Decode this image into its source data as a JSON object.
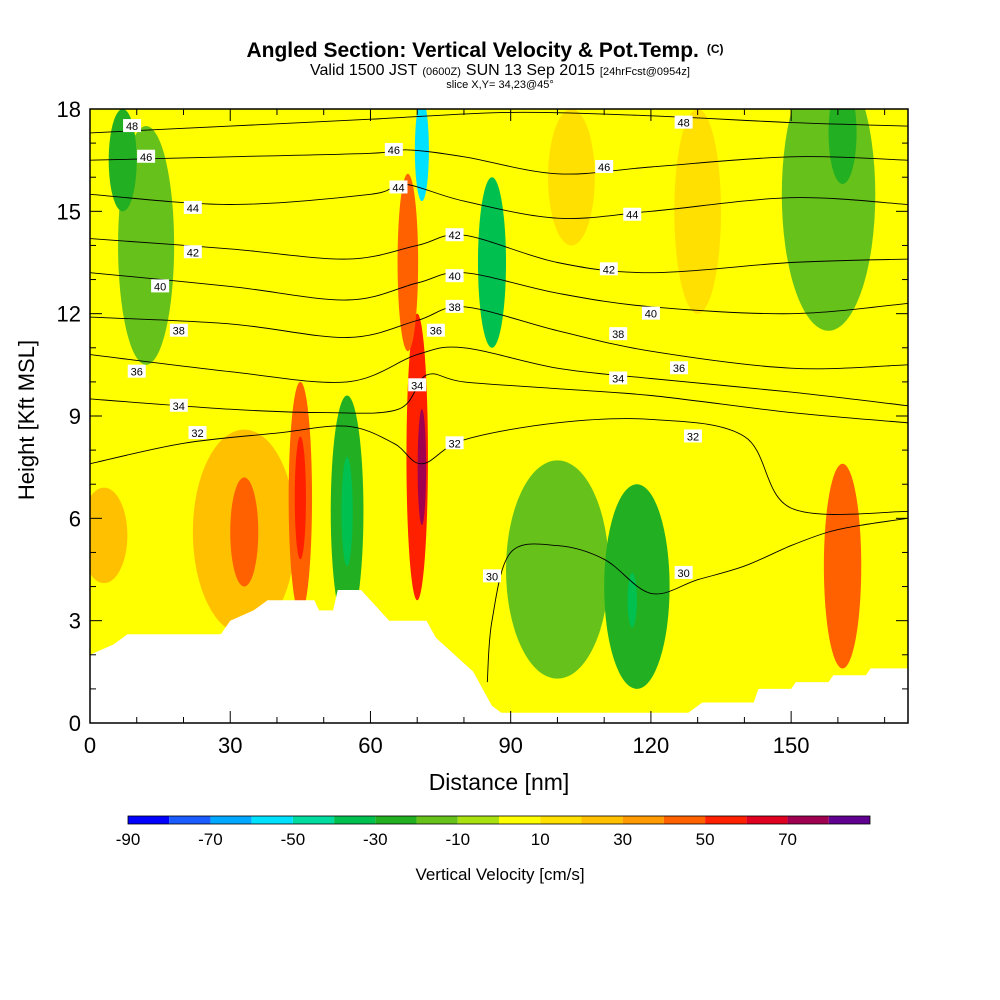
{
  "title": {
    "main": "Angled Section: Vertical Velocity & Pot.Temp.",
    "main_suffix": "(C)",
    "valid_prefix": "Valid 1500 JST",
    "valid_utc": "(0600Z)",
    "valid_date": "SUN 13 Sep 2015",
    "forecast": "[24hrFcst@0954z]",
    "slice": "slice X,Y= 34,23@45°"
  },
  "chart_data": {
    "type": "heatmap",
    "xlabel": "Distance [nm]",
    "ylabel": "Height [Kft MSL]",
    "xlim": [
      0,
      175
    ],
    "ylim": [
      0,
      18
    ],
    "x_ticks": [
      0,
      30,
      60,
      90,
      120,
      150
    ],
    "y_ticks": [
      0,
      3,
      6,
      9,
      12,
      15,
      18
    ],
    "colorbar": {
      "label": "Vertical Velocity [cm/s]",
      "bounds": [
        -90,
        -80,
        -70,
        -60,
        -50,
        -40,
        -30,
        -20,
        -10,
        0,
        10,
        20,
        30,
        40,
        50,
        60,
        70,
        80
      ],
      "tick_labels": [
        -90,
        -70,
        -50,
        -30,
        -10,
        10,
        30,
        50,
        70
      ],
      "colors": [
        "#0000ff",
        "#1a5cff",
        "#00a8ff",
        "#00e0ff",
        "#00dca0",
        "#00c050",
        "#22b022",
        "#66c21a",
        "#a8e010",
        "#ffff00",
        "#ffe000",
        "#ffc000",
        "#ff9a00",
        "#ff6000",
        "#ff2000",
        "#e00020",
        "#a00050",
        "#600090"
      ]
    },
    "terrain_top_kft": [
      [
        0,
        2.0
      ],
      [
        5,
        2.3
      ],
      [
        8,
        2.6
      ],
      [
        28,
        2.6
      ],
      [
        30,
        3.0
      ],
      [
        35,
        3.3
      ],
      [
        38,
        3.6
      ],
      [
        48,
        3.6
      ],
      [
        49,
        3.3
      ],
      [
        52,
        3.3
      ],
      [
        53,
        3.9
      ],
      [
        58,
        3.9
      ],
      [
        60,
        3.6
      ],
      [
        62,
        3.3
      ],
      [
        64,
        3.0
      ],
      [
        70,
        3.0
      ],
      [
        72,
        3.0
      ],
      [
        74,
        2.5
      ],
      [
        78,
        2.0
      ],
      [
        82,
        1.5
      ],
      [
        84,
        1.0
      ],
      [
        86,
        0.5
      ],
      [
        88,
        0.3
      ],
      [
        128,
        0.3
      ],
      [
        131,
        0.6
      ],
      [
        142,
        0.6
      ],
      [
        143,
        1.0
      ],
      [
        150,
        1.0
      ],
      [
        151,
        1.2
      ],
      [
        158,
        1.2
      ],
      [
        159,
        1.4
      ],
      [
        166,
        1.4
      ],
      [
        167,
        1.6
      ],
      [
        175,
        1.6
      ]
    ],
    "velocity_cells_cm_s": [
      {
        "x": 3,
        "y": 5.5,
        "rx": 5,
        "ry": 1.4,
        "value": 25
      },
      {
        "x": 33,
        "y": 5.6,
        "rx": 11,
        "ry": 3.0,
        "value": 25
      },
      {
        "x": 33,
        "y": 5.6,
        "rx": 3,
        "ry": 1.6,
        "value": 45
      },
      {
        "x": 45,
        "y": 6.6,
        "rx": 2.5,
        "ry": 3.4,
        "value": 45
      },
      {
        "x": 45,
        "y": 6.6,
        "rx": 1.2,
        "ry": 1.8,
        "value": 55
      },
      {
        "x": 55,
        "y": 6.2,
        "rx": 3.5,
        "ry": 3.4,
        "value": -25
      },
      {
        "x": 55,
        "y": 6.2,
        "rx": 1.2,
        "ry": 1.6,
        "value": -35
      },
      {
        "x": 70,
        "y": 7.8,
        "rx": 2.3,
        "ry": 4.2,
        "value": 55
      },
      {
        "x": 71,
        "y": 7.5,
        "rx": 0.9,
        "ry": 1.7,
        "value": 75
      },
      {
        "x": 68,
        "y": 13.5,
        "rx": 2.2,
        "ry": 2.6,
        "value": 45
      },
      {
        "x": 71,
        "y": 16.8,
        "rx": 1.5,
        "ry": 1.5,
        "value": -55
      },
      {
        "x": 86,
        "y": 13.5,
        "rx": 3.0,
        "ry": 2.5,
        "value": -35
      },
      {
        "x": 100,
        "y": 4.5,
        "rx": 11,
        "ry": 3.2,
        "value": -15
      },
      {
        "x": 117,
        "y": 4.0,
        "rx": 7,
        "ry": 3.0,
        "value": -25
      },
      {
        "x": 116,
        "y": 3.6,
        "rx": 1.0,
        "ry": 0.8,
        "value": -35
      },
      {
        "x": 161,
        "y": 4.6,
        "rx": 4,
        "ry": 3.0,
        "value": 45
      },
      {
        "x": 12,
        "y": 14.0,
        "rx": 6,
        "ry": 3.5,
        "value": -15
      },
      {
        "x": 7,
        "y": 16.5,
        "rx": 3,
        "ry": 1.5,
        "value": -25
      },
      {
        "x": 158,
        "y": 15.5,
        "rx": 10,
        "ry": 4.0,
        "value": -15
      },
      {
        "x": 161,
        "y": 17.3,
        "rx": 3,
        "ry": 1.5,
        "value": -25
      },
      {
        "x": 130,
        "y": 15.0,
        "rx": 5,
        "ry": 3.0,
        "value": 15
      },
      {
        "x": 103,
        "y": 16.0,
        "rx": 5,
        "ry": 2.0,
        "value": 15
      }
    ],
    "theta_contours_c": [
      {
        "value": 48,
        "label": "48",
        "points": [
          [
            0,
            17.3
          ],
          [
            30,
            17.5
          ],
          [
            60,
            17.7
          ],
          [
            90,
            17.9
          ],
          [
            120,
            17.8
          ],
          [
            150,
            17.6
          ],
          [
            175,
            17.5
          ]
        ]
      },
      {
        "value": 46,
        "label": "46",
        "points": [
          [
            0,
            16.5
          ],
          [
            30,
            16.6
          ],
          [
            60,
            16.7
          ],
          [
            68,
            16.8
          ],
          [
            80,
            16.6
          ],
          [
            100,
            16.1
          ],
          [
            120,
            16.3
          ],
          [
            150,
            16.6
          ],
          [
            175,
            16.5
          ]
        ]
      },
      {
        "value": 44,
        "label": "44",
        "points": [
          [
            0,
            15.5
          ],
          [
            30,
            15.2
          ],
          [
            60,
            15.5
          ],
          [
            67,
            15.8
          ],
          [
            80,
            15.3
          ],
          [
            100,
            14.8
          ],
          [
            120,
            15.0
          ],
          [
            150,
            15.4
          ],
          [
            175,
            15.2
          ]
        ]
      },
      {
        "value": 42,
        "label": "42",
        "points": [
          [
            0,
            14.2
          ],
          [
            30,
            13.9
          ],
          [
            55,
            13.6
          ],
          [
            70,
            14.0
          ],
          [
            80,
            14.3
          ],
          [
            100,
            13.5
          ],
          [
            120,
            13.2
          ],
          [
            150,
            13.5
          ],
          [
            175,
            13.6
          ]
        ]
      },
      {
        "value": 40,
        "label": "40",
        "points": [
          [
            0,
            13.2
          ],
          [
            30,
            12.8
          ],
          [
            55,
            12.4
          ],
          [
            70,
            12.9
          ],
          [
            80,
            13.2
          ],
          [
            100,
            12.6
          ],
          [
            120,
            12.2
          ],
          [
            150,
            12.0
          ],
          [
            175,
            12.3
          ]
        ]
      },
      {
        "value": 38,
        "label": "38",
        "points": [
          [
            0,
            11.9
          ],
          [
            30,
            11.7
          ],
          [
            55,
            11.3
          ],
          [
            70,
            11.8
          ],
          [
            80,
            12.2
          ],
          [
            100,
            11.5
          ],
          [
            120,
            10.9
          ],
          [
            150,
            10.4
          ],
          [
            175,
            10.5
          ]
        ]
      },
      {
        "value": 36,
        "label": "36",
        "points": [
          [
            0,
            10.8
          ],
          [
            30,
            10.3
          ],
          [
            55,
            10.0
          ],
          [
            70,
            10.8
          ],
          [
            80,
            11.0
          ],
          [
            100,
            10.4
          ],
          [
            120,
            10.1
          ],
          [
            150,
            9.7
          ],
          [
            175,
            9.3
          ]
        ]
      },
      {
        "value": 34,
        "label": "34",
        "points": [
          [
            0,
            9.5
          ],
          [
            30,
            9.2
          ],
          [
            50,
            9.1
          ],
          [
            66,
            9.2
          ],
          [
            72,
            10.2
          ],
          [
            80,
            10.0
          ],
          [
            100,
            9.8
          ],
          [
            120,
            9.6
          ],
          [
            150,
            9.1
          ],
          [
            175,
            8.8
          ]
        ]
      },
      {
        "value": 32,
        "label": "32",
        "points": [
          [
            0,
            7.6
          ],
          [
            20,
            8.2
          ],
          [
            40,
            8.5
          ],
          [
            55,
            8.7
          ],
          [
            65,
            8.2
          ],
          [
            71,
            7.6
          ],
          [
            80,
            8.3
          ],
          [
            100,
            8.8
          ],
          [
            120,
            8.9
          ],
          [
            140,
            8.4
          ],
          [
            150,
            6.3
          ],
          [
            175,
            6.2
          ]
        ]
      },
      {
        "value": 30,
        "label": "30",
        "points": [
          [
            85,
            1.2
          ],
          [
            86,
            3.0
          ],
          [
            90,
            5.0
          ],
          [
            100,
            5.2
          ],
          [
            110,
            4.8
          ],
          [
            120,
            3.8
          ],
          [
            130,
            4.2
          ],
          [
            140,
            4.6
          ],
          [
            150,
            5.2
          ],
          [
            158,
            5.6
          ],
          [
            165,
            5.8
          ],
          [
            175,
            6.0
          ]
        ]
      }
    ],
    "theta_labels": [
      {
        "label": "48",
        "x": 9,
        "y": 17.5
      },
      {
        "label": "48",
        "x": 127,
        "y": 17.6
      },
      {
        "label": "46",
        "x": 12,
        "y": 16.6
      },
      {
        "label": "46",
        "x": 65,
        "y": 16.8
      },
      {
        "label": "46",
        "x": 110,
        "y": 16.3
      },
      {
        "label": "44",
        "x": 22,
        "y": 15.1
      },
      {
        "label": "44",
        "x": 66,
        "y": 15.7
      },
      {
        "label": "44",
        "x": 116,
        "y": 14.9
      },
      {
        "label": "42",
        "x": 22,
        "y": 13.8
      },
      {
        "label": "42",
        "x": 78,
        "y": 14.3
      },
      {
        "label": "42",
        "x": 111,
        "y": 13.3
      },
      {
        "label": "40",
        "x": 15,
        "y": 12.8
      },
      {
        "label": "40",
        "x": 78,
        "y": 13.1
      },
      {
        "label": "40",
        "x": 120,
        "y": 12.0
      },
      {
        "label": "38",
        "x": 19,
        "y": 11.5
      },
      {
        "label": "38",
        "x": 78,
        "y": 12.2
      },
      {
        "label": "38",
        "x": 113,
        "y": 11.4
      },
      {
        "label": "36",
        "x": 10,
        "y": 10.3
      },
      {
        "label": "36",
        "x": 74,
        "y": 11.5
      },
      {
        "label": "36",
        "x": 126,
        "y": 10.4
      },
      {
        "label": "34",
        "x": 19,
        "y": 9.3
      },
      {
        "label": "34",
        "x": 70,
        "y": 9.9
      },
      {
        "label": "34",
        "x": 113,
        "y": 10.1
      },
      {
        "label": "32",
        "x": 23,
        "y": 8.5
      },
      {
        "label": "32",
        "x": 78,
        "y": 8.2
      },
      {
        "label": "32",
        "x": 129,
        "y": 8.4
      },
      {
        "label": "30",
        "x": 86,
        "y": 4.3
      },
      {
        "label": "30",
        "x": 127,
        "y": 4.4
      }
    ]
  }
}
